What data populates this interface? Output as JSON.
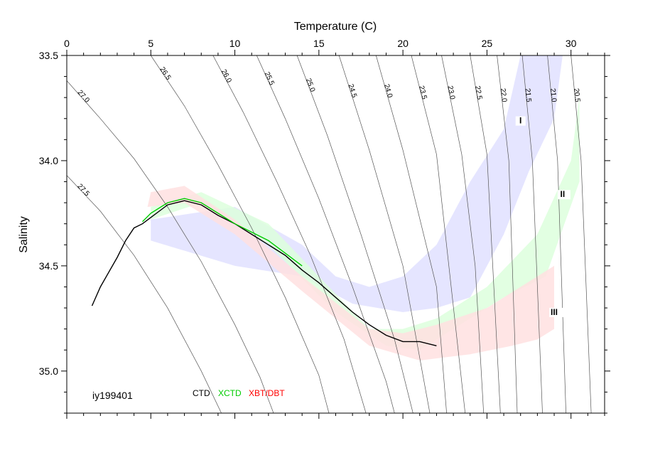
{
  "chart_data": {
    "type": "scatter",
    "title": "",
    "xlabel": "Temperature (C)",
    "ylabel": "Salinity",
    "xlim": [
      0,
      32
    ],
    "ylim": [
      35.2,
      33.5
    ],
    "x_ticks": [
      "0",
      "5",
      "10",
      "15",
      "20",
      "25",
      "30"
    ],
    "y_ticks": [
      "33.5",
      "34.0",
      "34.5",
      "35.0"
    ],
    "cruise": "iy199401",
    "legend": [
      {
        "label": "CTD",
        "color": "#000000"
      },
      {
        "label": "XCTD",
        "color": "#00cc00"
      },
      {
        "label": "XBT/DBT",
        "color": "#ff0000"
      }
    ],
    "isopycnals": [
      {
        "label": "27.5",
        "points": [
          [
            0,
            34.07
          ],
          [
            2,
            34.24
          ],
          [
            4,
            34.45
          ],
          [
            6,
            34.7
          ],
          [
            8,
            35.0
          ],
          [
            9.2,
            35.2
          ]
        ]
      },
      {
        "label": "27.0",
        "points": [
          [
            0,
            33.62
          ],
          [
            2,
            33.8
          ],
          [
            4,
            33.99
          ],
          [
            6,
            34.22
          ],
          [
            8,
            34.48
          ],
          [
            10,
            34.78
          ],
          [
            11.5,
            35.03
          ],
          [
            12.3,
            35.2
          ]
        ]
      },
      {
        "label": "26.5",
        "points": [
          [
            5,
            33.5
          ],
          [
            7,
            33.74
          ],
          [
            9,
            34.02
          ],
          [
            11,
            34.32
          ],
          [
            13,
            34.65
          ],
          [
            15,
            35.02
          ],
          [
            15.6,
            35.2
          ]
        ]
      },
      {
        "label": "26.0",
        "points": [
          [
            8.7,
            33.5
          ],
          [
            10.5,
            33.77
          ],
          [
            12.5,
            34.1
          ],
          [
            14.5,
            34.45
          ],
          [
            16.5,
            34.85
          ],
          [
            17.8,
            35.2
          ]
        ]
      },
      {
        "label": "25.5",
        "points": [
          [
            11.3,
            33.5
          ],
          [
            13,
            33.8
          ],
          [
            15,
            34.18
          ],
          [
            17,
            34.6
          ],
          [
            19,
            35.05
          ],
          [
            19.5,
            35.2
          ]
        ]
      },
      {
        "label": "25.0",
        "points": [
          [
            13.7,
            33.5
          ],
          [
            15.5,
            33.88
          ],
          [
            17.5,
            34.35
          ],
          [
            19.5,
            34.85
          ],
          [
            20.6,
            35.2
          ]
        ]
      },
      {
        "label": "24.5",
        "points": [
          [
            16.2,
            33.5
          ],
          [
            18,
            33.95
          ],
          [
            20,
            34.5
          ],
          [
            21.6,
            35.2
          ]
        ]
      },
      {
        "label": "24.0",
        "points": [
          [
            18.4,
            33.5
          ],
          [
            20,
            33.95
          ],
          [
            22,
            34.6
          ],
          [
            22.6,
            35.2
          ]
        ]
      },
      {
        "label": "23.5",
        "points": [
          [
            20.5,
            33.5
          ],
          [
            22,
            33.97
          ],
          [
            23.7,
            35.2
          ]
        ]
      },
      {
        "label": "23.0",
        "points": [
          [
            22.3,
            33.5
          ],
          [
            23.5,
            33.97
          ],
          [
            24.3,
            34.5
          ],
          [
            24.8,
            35.2
          ]
        ]
      },
      {
        "label": "22.5",
        "points": [
          [
            24,
            33.5
          ],
          [
            25,
            33.97
          ],
          [
            25.8,
            35.2
          ]
        ]
      },
      {
        "label": "22.0",
        "points": [
          [
            25.6,
            33.5
          ],
          [
            26.3,
            34.0
          ],
          [
            26.8,
            35.2
          ]
        ]
      },
      {
        "label": "21.5",
        "points": [
          [
            27.1,
            33.5
          ],
          [
            27.7,
            34.0
          ],
          [
            28.3,
            35.2
          ]
        ]
      },
      {
        "label": "21.0",
        "points": [
          [
            28.6,
            33.5
          ],
          [
            29.2,
            34.0
          ],
          [
            29.7,
            35.2
          ]
        ]
      },
      {
        "label": "20.5",
        "points": [
          [
            30,
            33.5
          ],
          [
            30.6,
            34.0
          ],
          [
            31.2,
            35.2
          ]
        ]
      }
    ],
    "envelopes": [
      {
        "name": "I",
        "color": "#e0e0ff",
        "label_pos": [
          27,
          33.82
        ],
        "upper": [
          [
            5,
            34.28
          ],
          [
            10,
            34.22
          ],
          [
            14,
            34.4
          ],
          [
            16,
            34.55
          ],
          [
            18,
            34.6
          ],
          [
            20,
            34.55
          ],
          [
            22,
            34.4
          ],
          [
            24,
            34.1
          ],
          [
            26,
            33.85
          ],
          [
            27,
            33.5
          ]
        ],
        "lower": [
          [
            5,
            34.38
          ],
          [
            10,
            34.5
          ],
          [
            14,
            34.55
          ],
          [
            17,
            34.68
          ],
          [
            20,
            34.72
          ],
          [
            22,
            34.7
          ],
          [
            24,
            34.65
          ],
          [
            26,
            34.35
          ],
          [
            27.5,
            34.05
          ],
          [
            29,
            33.8
          ],
          [
            29.5,
            33.5
          ]
        ]
      },
      {
        "name": "II",
        "color": "#ddffdd",
        "label_pos": [
          29.5,
          34.17
        ],
        "upper": [
          [
            5,
            34.22
          ],
          [
            8,
            34.15
          ],
          [
            12,
            34.3
          ],
          [
            15,
            34.55
          ],
          [
            18,
            34.8
          ],
          [
            20,
            34.8
          ],
          [
            22,
            34.75
          ],
          [
            25,
            34.6
          ],
          [
            28,
            34.35
          ],
          [
            30,
            34.0
          ],
          [
            30.5,
            33.7
          ]
        ],
        "lower": [
          [
            5,
            34.28
          ],
          [
            8,
            34.2
          ],
          [
            12,
            34.4
          ],
          [
            16,
            34.72
          ],
          [
            19,
            34.88
          ],
          [
            21,
            34.9
          ],
          [
            23,
            34.8
          ],
          [
            26,
            34.65
          ],
          [
            28.5,
            34.55
          ],
          [
            30.5,
            34.1
          ]
        ]
      },
      {
        "name": "III",
        "color": "#ffe0e0",
        "label_pos": [
          29,
          34.73
        ],
        "upper": [
          [
            5,
            34.15
          ],
          [
            7,
            34.12
          ],
          [
            10,
            34.28
          ],
          [
            14,
            34.55
          ],
          [
            18,
            34.8
          ],
          [
            20,
            34.82
          ],
          [
            22,
            34.78
          ],
          [
            25,
            34.7
          ],
          [
            27,
            34.6
          ],
          [
            29,
            34.5
          ]
        ],
        "lower": [
          [
            4.8,
            34.22
          ],
          [
            7,
            34.2
          ],
          [
            10,
            34.35
          ],
          [
            14,
            34.62
          ],
          [
            18,
            34.88
          ],
          [
            21,
            34.95
          ],
          [
            24,
            34.92
          ],
          [
            26.5,
            34.88
          ],
          [
            28,
            34.85
          ],
          [
            29,
            34.8
          ]
        ]
      }
    ],
    "ctd_profile": {
      "color": "#000000",
      "points": [
        [
          1.5,
          34.69
        ],
        [
          2,
          34.6
        ],
        [
          2.5,
          34.53
        ],
        [
          3,
          34.46
        ],
        [
          3.5,
          34.38
        ],
        [
          4,
          34.32
        ],
        [
          4.5,
          34.3
        ],
        [
          5,
          34.27
        ],
        [
          5.5,
          34.24
        ],
        [
          6,
          34.21
        ],
        [
          7,
          34.19
        ],
        [
          8,
          34.21
        ],
        [
          9,
          34.26
        ],
        [
          10,
          34.3
        ],
        [
          11,
          34.35
        ],
        [
          12,
          34.4
        ],
        [
          13,
          34.45
        ],
        [
          14,
          34.52
        ],
        [
          15,
          34.58
        ],
        [
          16,
          34.65
        ],
        [
          17,
          34.72
        ],
        [
          18,
          34.78
        ],
        [
          19,
          34.83
        ],
        [
          20,
          34.86
        ],
        [
          21,
          34.86
        ],
        [
          22,
          34.88
        ]
      ]
    },
    "xctd_profile": {
      "color": "#00cc00",
      "points": [
        [
          4.5,
          34.29
        ],
        [
          5,
          34.25
        ],
        [
          6,
          34.2
        ],
        [
          7,
          34.18
        ],
        [
          8,
          34.2
        ],
        [
          9,
          34.25
        ],
        [
          10,
          34.3
        ],
        [
          11,
          34.34
        ],
        [
          12,
          34.38
        ],
        [
          13,
          34.44
        ],
        [
          14,
          34.5
        ]
      ]
    }
  }
}
